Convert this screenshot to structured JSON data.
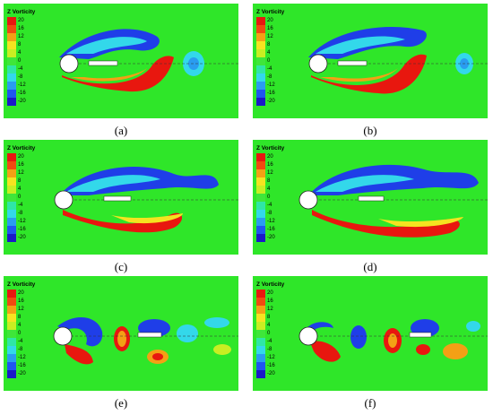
{
  "legend": {
    "title": "Z Vorticity",
    "ticks": [
      "20",
      "16",
      "12",
      "8",
      "4",
      "0",
      "-4",
      "-8",
      "-12",
      "-16",
      "-20"
    ],
    "colors": [
      "#e8170f",
      "#f04a10",
      "#f3a015",
      "#f5e320",
      "#c8ee22",
      "#3fe63a",
      "#2fe6a6",
      "#33d8ea",
      "#2a9cf0",
      "#1f56f0",
      "#1a19c8"
    ]
  },
  "field_color": "#2fe629",
  "panels": [
    {
      "id": "a",
      "caption": "(a)"
    },
    {
      "id": "b",
      "caption": "(b)"
    },
    {
      "id": "c",
      "caption": "(c)"
    },
    {
      "id": "d",
      "caption": "(d)"
    },
    {
      "id": "e",
      "caption": "(e)"
    },
    {
      "id": "f",
      "caption": "(f)"
    }
  ]
}
